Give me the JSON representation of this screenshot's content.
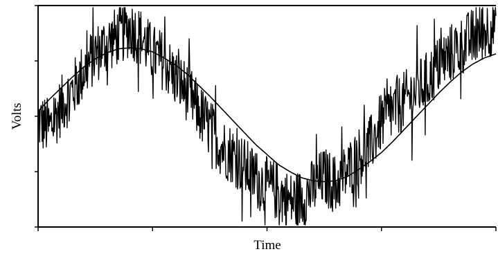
{
  "chart_data": {
    "type": "line",
    "title": "",
    "xlabel": "Time",
    "ylabel": "Volts",
    "xlim": [
      0,
      1
    ],
    "ylim": [
      -1.1,
      1.1
    ],
    "grid": false,
    "legend": "none",
    "x_tick_count": 5,
    "y_tick_count": 5,
    "colors": {
      "line": "#000000",
      "axis": "#000000",
      "background": "#ffffff"
    },
    "series": [
      {
        "name": "",
        "role": "noisy-signal",
        "x": [
          0,
          0.025,
          0.05,
          0.075,
          0.1,
          0.125,
          0.15,
          0.175,
          0.2,
          0.225,
          0.25,
          0.275,
          0.3,
          0.325,
          0.35,
          0.375,
          0.4,
          0.425,
          0.45,
          0.475,
          0.5,
          0.525,
          0.55,
          0.575,
          0.6,
          0.625,
          0.65,
          0.675,
          0.7,
          0.725,
          0.75,
          0.775,
          0.8,
          0.825,
          0.85,
          0.875,
          0.9,
          0.925,
          0.95,
          0.975,
          1
        ],
        "y": [
          -0.05,
          -0.12,
          0.1,
          0.25,
          0.45,
          0.62,
          0.72,
          0.8,
          0.88,
          0.78,
          0.62,
          0.55,
          0.38,
          0.25,
          0.05,
          -0.12,
          -0.3,
          -0.38,
          -0.5,
          -0.62,
          -0.7,
          -0.75,
          -0.85,
          -0.82,
          -0.72,
          -0.6,
          -0.68,
          -0.55,
          -0.4,
          -0.3,
          -0.05,
          0.05,
          0.15,
          0.25,
          0.35,
          0.5,
          0.62,
          0.7,
          0.78,
          0.85,
          0.92
        ],
        "noise_amplitude": 0.3
      },
      {
        "name": "",
        "role": "fitted-sine",
        "x": [
          0,
          0.025,
          0.05,
          0.075,
          0.1,
          0.125,
          0.15,
          0.175,
          0.2,
          0.225,
          0.25,
          0.275,
          0.3,
          0.325,
          0.35,
          0.375,
          0.4,
          0.425,
          0.45,
          0.475,
          0.5,
          0.525,
          0.55,
          0.575,
          0.6,
          0.625,
          0.65,
          0.675,
          0.7,
          0.725,
          0.75,
          0.775,
          0.8,
          0.825,
          0.85,
          0.875,
          0.9,
          0.925,
          0.95,
          0.975,
          1
        ],
        "y": [
          0.05,
          0.17,
          0.28,
          0.39,
          0.49,
          0.57,
          0.63,
          0.67,
          0.68,
          0.67,
          0.64,
          0.58,
          0.51,
          0.42,
          0.31,
          0.2,
          0.08,
          -0.04,
          -0.16,
          -0.28,
          -0.38,
          -0.48,
          -0.55,
          -0.61,
          -0.64,
          -0.65,
          -0.64,
          -0.6,
          -0.53,
          -0.45,
          -0.36,
          -0.25,
          -0.13,
          -0.01,
          0.11,
          0.23,
          0.34,
          0.44,
          0.52,
          0.58,
          0.62
        ]
      }
    ]
  }
}
